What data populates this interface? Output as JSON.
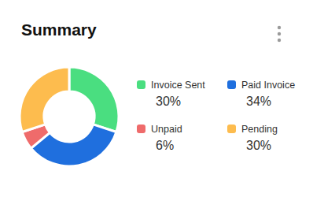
{
  "chart_data": {
    "type": "donut",
    "title": "Summary",
    "categories": [
      "Invoice Sent",
      "Paid Invoice",
      "Unpaid",
      "Pending"
    ],
    "values": [
      30,
      34,
      6,
      30
    ],
    "value_labels": [
      "30%",
      "34%",
      "6%",
      "30%"
    ],
    "colors": [
      "#4ade80",
      "#1f6fde",
      "#ef6b6b",
      "#fdbc4e"
    ],
    "legend": "right"
  }
}
